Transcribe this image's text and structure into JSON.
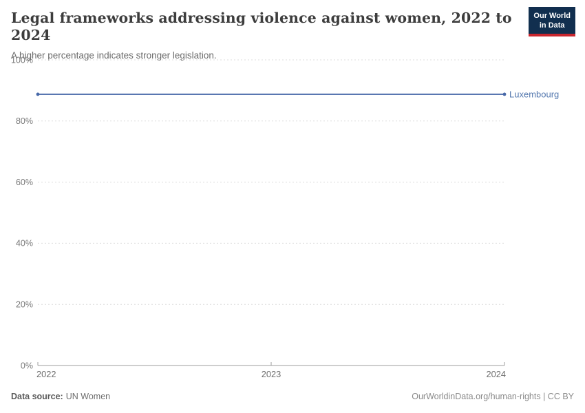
{
  "header": {
    "title": "Legal frameworks addressing violence against women, 2022 to 2024",
    "subtitle": "A higher percentage indicates stronger legislation.",
    "logo": {
      "line1": "Our World",
      "line2": "in Data"
    }
  },
  "chart_data": {
    "type": "line",
    "title": "Legal frameworks addressing violence against women",
    "x": [
      2022,
      2023,
      2024
    ],
    "series": [
      {
        "name": "Luxembourg",
        "values": [
          88.75,
          88.75,
          88.75
        ]
      }
    ],
    "xlabel": "",
    "ylabel": "",
    "ylim": [
      0,
      100
    ],
    "yticks": [
      0,
      20,
      40,
      60,
      80,
      100
    ],
    "ytick_suffix": "%",
    "xticks": [
      2022,
      2023,
      2024
    ],
    "grid": true,
    "legend_position": "end-of-line-label"
  },
  "footer": {
    "source_label": "Data source:",
    "source_value": "UN Women",
    "right_text": "OurWorldinData.org/human-rights | CC BY"
  },
  "colors": {
    "series_line": "#4768a8",
    "series_label": "#5377ae",
    "grid": "#dcdcdc",
    "axis": "#9e9e9e",
    "ytick_label": "#7a7a7a",
    "xtick_label": "#6e6e6e",
    "logo_bg": "#112f4f",
    "logo_stripe": "#c9262e",
    "title_text": "#3d3d3d"
  }
}
